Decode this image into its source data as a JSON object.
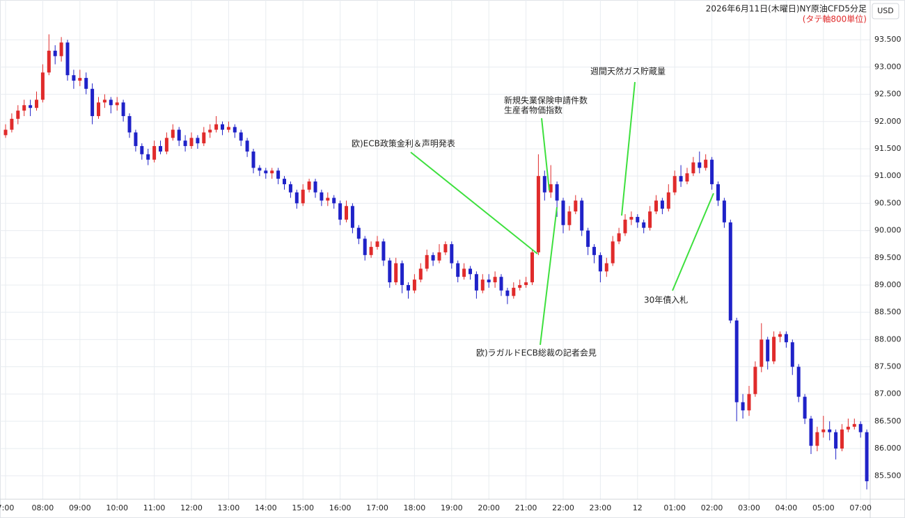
{
  "chart_data": {
    "type": "candlestick",
    "title": "2026年6月11日(木曜日)NY原油CFD5分足",
    "subtitle": "(タテ軸800単位)",
    "currency": "USD",
    "up_color": "#e02b2b",
    "down_color": "#1f22c8",
    "grid": true,
    "ylim": [
      85.07,
      94.23
    ],
    "yticks": [
      {
        "value": 85.5,
        "label": "85.500"
      },
      {
        "value": 86,
        "label": "86.000"
      },
      {
        "value": 86.5,
        "label": "86.500"
      },
      {
        "value": 87,
        "label": "87.000"
      },
      {
        "value": 87.5,
        "label": "87.500"
      },
      {
        "value": 88,
        "label": "88.000"
      },
      {
        "value": 88.5,
        "label": "88.500"
      },
      {
        "value": 89,
        "label": "89.000"
      },
      {
        "value": 89.5,
        "label": "89.500"
      },
      {
        "value": 90,
        "label": "90.000"
      },
      {
        "value": 90.5,
        "label": "90.500"
      },
      {
        "value": 91,
        "label": "91.000"
      },
      {
        "value": 91.5,
        "label": "91.500"
      },
      {
        "value": 92,
        "label": "92.000"
      },
      {
        "value": 92.5,
        "label": "92.500"
      },
      {
        "value": 93,
        "label": "93.000"
      },
      {
        "value": 93.5,
        "label": "93.500"
      }
    ],
    "categories": [
      "7:00",
      null,
      null,
      null,
      null,
      null,
      "08:00",
      null,
      null,
      null,
      null,
      null,
      "09:00",
      null,
      null,
      null,
      null,
      null,
      "10:00",
      null,
      null,
      null,
      null,
      null,
      "11:00",
      null,
      null,
      null,
      null,
      null,
      "12:00",
      null,
      null,
      null,
      null,
      null,
      "13:00",
      null,
      null,
      null,
      null,
      null,
      "14:00",
      null,
      null,
      null,
      null,
      null,
      "15:00",
      null,
      null,
      null,
      null,
      null,
      "16:00",
      null,
      null,
      null,
      null,
      null,
      "17:00",
      null,
      null,
      null,
      null,
      null,
      "18:00",
      null,
      null,
      null,
      null,
      null,
      "19:00",
      null,
      null,
      null,
      null,
      null,
      "20:00",
      null,
      null,
      null,
      null,
      null,
      "21:00",
      null,
      null,
      null,
      null,
      null,
      "22:00",
      null,
      null,
      null,
      null,
      null,
      "23:00",
      null,
      null,
      null,
      null,
      null,
      "12",
      null,
      null,
      null,
      null,
      null,
      "01:00",
      null,
      null,
      null,
      null,
      null,
      "02:00",
      null,
      null,
      null,
      null,
      null,
      "03:00",
      null,
      null,
      null,
      null,
      null,
      "04:00",
      null,
      null,
      null,
      null,
      null,
      "05:00",
      null,
      null,
      null,
      null,
      null,
      "07:00",
      null
    ],
    "candles": [
      [
        91.75,
        91.95,
        91.7,
        91.85
      ],
      [
        91.85,
        92.15,
        91.8,
        92.05
      ],
      [
        92.05,
        92.3,
        91.95,
        92.2
      ],
      [
        92.2,
        92.4,
        92.1,
        92.3
      ],
      [
        92.3,
        92.4,
        92.1,
        92.25
      ],
      [
        92.25,
        92.55,
        92.2,
        92.4
      ],
      [
        92.4,
        93.05,
        92.35,
        92.9
      ],
      [
        92.9,
        93.6,
        92.85,
        93.3
      ],
      [
        93.3,
        93.4,
        93.05,
        93.2
      ],
      [
        93.2,
        93.55,
        93.1,
        93.45
      ],
      [
        93.45,
        93.5,
        92.75,
        92.85
      ],
      [
        92.85,
        92.95,
        92.6,
        92.75
      ],
      [
        92.75,
        92.95,
        92.65,
        92.8
      ],
      [
        92.8,
        92.9,
        92.5,
        92.6
      ],
      [
        92.6,
        92.7,
        91.95,
        92.1
      ],
      [
        92.1,
        92.45,
        92.05,
        92.35
      ],
      [
        92.35,
        92.5,
        92.25,
        92.4
      ],
      [
        92.4,
        92.45,
        92.15,
        92.3
      ],
      [
        92.3,
        92.45,
        92.2,
        92.35
      ],
      [
        92.35,
        92.4,
        92.0,
        92.1
      ],
      [
        92.1,
        92.15,
        91.7,
        91.8
      ],
      [
        91.8,
        91.85,
        91.45,
        91.55
      ],
      [
        91.55,
        91.6,
        91.3,
        91.4
      ],
      [
        91.4,
        91.5,
        91.2,
        91.3
      ],
      [
        91.3,
        91.65,
        91.25,
        91.55
      ],
      [
        91.55,
        91.65,
        91.4,
        91.45
      ],
      [
        91.45,
        91.8,
        91.4,
        91.7
      ],
      [
        91.7,
        91.95,
        91.65,
        91.85
      ],
      [
        91.85,
        91.9,
        91.55,
        91.65
      ],
      [
        91.65,
        91.75,
        91.45,
        91.55
      ],
      [
        91.55,
        91.8,
        91.5,
        91.7
      ],
      [
        91.7,
        91.75,
        91.5,
        91.6
      ],
      [
        91.6,
        91.9,
        91.55,
        91.8
      ],
      [
        91.8,
        91.95,
        91.7,
        91.85
      ],
      [
        91.85,
        92.1,
        91.8,
        91.95
      ],
      [
        91.95,
        92.0,
        91.75,
        91.85
      ],
      [
        91.85,
        92.0,
        91.8,
        91.9
      ],
      [
        91.9,
        91.95,
        91.7,
        91.8
      ],
      [
        91.8,
        91.85,
        91.55,
        91.65
      ],
      [
        91.65,
        91.7,
        91.35,
        91.45
      ],
      [
        91.45,
        91.5,
        91.05,
        91.15
      ],
      [
        91.15,
        91.2,
        91.0,
        91.1
      ],
      [
        91.1,
        91.15,
        90.95,
        91.05
      ],
      [
        91.05,
        91.15,
        90.95,
        91.1
      ],
      [
        91.1,
        91.15,
        90.85,
        90.95
      ],
      [
        90.95,
        91.0,
        90.75,
        90.85
      ],
      [
        90.85,
        90.9,
        90.6,
        90.7
      ],
      [
        90.7,
        90.75,
        90.4,
        90.5
      ],
      [
        90.5,
        90.85,
        90.45,
        90.75
      ],
      [
        90.75,
        90.95,
        90.7,
        90.9
      ],
      [
        90.9,
        90.95,
        90.6,
        90.7
      ],
      [
        90.7,
        90.75,
        90.45,
        90.55
      ],
      [
        90.55,
        90.7,
        90.45,
        90.6
      ],
      [
        90.6,
        90.65,
        90.4,
        90.5
      ],
      [
        90.5,
        90.55,
        90.1,
        90.2
      ],
      [
        90.2,
        90.55,
        90.15,
        90.45
      ],
      [
        90.45,
        90.5,
        89.95,
        90.05
      ],
      [
        90.05,
        90.1,
        89.75,
        89.85
      ],
      [
        89.85,
        89.9,
        89.45,
        89.55
      ],
      [
        89.55,
        89.8,
        89.5,
        89.7
      ],
      [
        89.7,
        89.9,
        89.65,
        89.8
      ],
      [
        89.8,
        89.85,
        89.35,
        89.45
      ],
      [
        89.45,
        89.5,
        88.95,
        89.05
      ],
      [
        89.05,
        89.5,
        89.0,
        89.4
      ],
      [
        89.4,
        89.45,
        88.85,
        89.0
      ],
      [
        89.0,
        89.05,
        88.75,
        88.9
      ],
      [
        88.9,
        89.2,
        88.85,
        89.1
      ],
      [
        89.1,
        89.4,
        89.05,
        89.3
      ],
      [
        89.3,
        89.65,
        89.25,
        89.55
      ],
      [
        89.55,
        89.6,
        89.35,
        89.45
      ],
      [
        89.45,
        89.75,
        89.4,
        89.6
      ],
      [
        89.6,
        89.8,
        89.55,
        89.75
      ],
      [
        89.75,
        89.8,
        89.3,
        89.4
      ],
      [
        89.4,
        89.45,
        89.05,
        89.15
      ],
      [
        89.15,
        89.4,
        89.1,
        89.3
      ],
      [
        89.3,
        89.35,
        89.1,
        89.2
      ],
      [
        89.2,
        89.25,
        88.75,
        88.9
      ],
      [
        88.9,
        89.2,
        88.85,
        89.1
      ],
      [
        89.1,
        89.2,
        88.95,
        89.05
      ],
      [
        89.05,
        89.25,
        88.95,
        89.15
      ],
      [
        89.15,
        89.2,
        88.8,
        88.9
      ],
      [
        88.9,
        88.95,
        88.65,
        88.8
      ],
      [
        88.8,
        89.05,
        88.75,
        88.95
      ],
      [
        88.95,
        89.1,
        88.9,
        89.0
      ],
      [
        89.0,
        89.15,
        88.95,
        89.05
      ],
      [
        89.05,
        89.65,
        89.0,
        89.6
      ],
      [
        89.6,
        91.4,
        89.55,
        91.0
      ],
      [
        91.0,
        91.1,
        90.55,
        90.7
      ],
      [
        90.7,
        91.2,
        90.6,
        90.85
      ],
      [
        90.85,
        90.9,
        90.25,
        90.55
      ],
      [
        90.55,
        90.6,
        89.95,
        90.1
      ],
      [
        90.1,
        90.45,
        90.0,
        90.35
      ],
      [
        90.35,
        90.65,
        90.3,
        90.55
      ],
      [
        90.55,
        90.6,
        89.9,
        90.0
      ],
      [
        90.0,
        90.05,
        89.55,
        89.7
      ],
      [
        89.7,
        89.75,
        89.4,
        89.55
      ],
      [
        89.55,
        89.6,
        89.05,
        89.25
      ],
      [
        89.25,
        89.5,
        89.15,
        89.4
      ],
      [
        89.4,
        89.9,
        89.35,
        89.8
      ],
      [
        89.8,
        90.05,
        89.75,
        89.95
      ],
      [
        89.95,
        90.3,
        89.9,
        90.2
      ],
      [
        90.2,
        90.35,
        90.1,
        90.25
      ],
      [
        90.25,
        90.3,
        90.05,
        90.15
      ],
      [
        90.15,
        90.2,
        89.95,
        90.05
      ],
      [
        90.05,
        90.45,
        90.0,
        90.35
      ],
      [
        90.35,
        90.65,
        90.3,
        90.55
      ],
      [
        90.55,
        90.6,
        90.3,
        90.4
      ],
      [
        90.4,
        90.85,
        90.35,
        90.7
      ],
      [
        90.7,
        91.1,
        90.65,
        91.0
      ],
      [
        91.0,
        91.2,
        90.8,
        90.9
      ],
      [
        90.9,
        91.15,
        90.85,
        91.05
      ],
      [
        91.05,
        91.35,
        91.0,
        91.25
      ],
      [
        91.25,
        91.45,
        91.05,
        91.15
      ],
      [
        91.15,
        91.4,
        91.1,
        91.3
      ],
      [
        91.3,
        91.35,
        90.75,
        90.85
      ],
      [
        90.85,
        90.9,
        90.45,
        90.55
      ],
      [
        90.55,
        90.6,
        90.05,
        90.15
      ],
      [
        90.15,
        90.2,
        88.3,
        88.35
      ],
      [
        88.35,
        88.4,
        86.5,
        86.85
      ],
      [
        86.85,
        87.0,
        86.55,
        86.7
      ],
      [
        86.7,
        87.15,
        86.6,
        87.0
      ],
      [
        87.0,
        87.6,
        86.95,
        87.5
      ],
      [
        87.5,
        88.3,
        87.4,
        88.0
      ],
      [
        88.0,
        88.05,
        87.45,
        87.6
      ],
      [
        87.6,
        88.15,
        87.55,
        88.05
      ],
      [
        88.05,
        88.15,
        87.95,
        88.1
      ],
      [
        88.1,
        88.15,
        87.85,
        87.95
      ],
      [
        87.95,
        88.0,
        87.35,
        87.5
      ],
      [
        87.5,
        87.55,
        86.85,
        86.95
      ],
      [
        86.95,
        87.0,
        86.45,
        86.55
      ],
      [
        86.55,
        86.6,
        85.9,
        86.05
      ],
      [
        86.05,
        86.4,
        85.95,
        86.3
      ],
      [
        86.3,
        86.6,
        86.2,
        86.35
      ],
      [
        86.35,
        86.5,
        86.15,
        86.3
      ],
      [
        86.3,
        86.35,
        85.8,
        86.0
      ],
      [
        86.0,
        86.45,
        85.95,
        86.35
      ],
      [
        86.35,
        86.55,
        86.3,
        86.4
      ],
      [
        86.4,
        86.55,
        86.35,
        86.45
      ],
      [
        86.45,
        86.5,
        86.2,
        86.3
      ],
      [
        86.3,
        86.35,
        85.25,
        85.4
      ]
    ]
  },
  "annotations": {
    "ecb_rate": "欧)ECB政策金利＆声明発表",
    "jobless": "新規失業保険申請件数",
    "ppi": "生産者物価指数",
    "gas": "週間天然ガス貯蔵量",
    "lagarde": "欧)ラガルドECB総裁の記者会見",
    "bond": "30年債入札"
  }
}
